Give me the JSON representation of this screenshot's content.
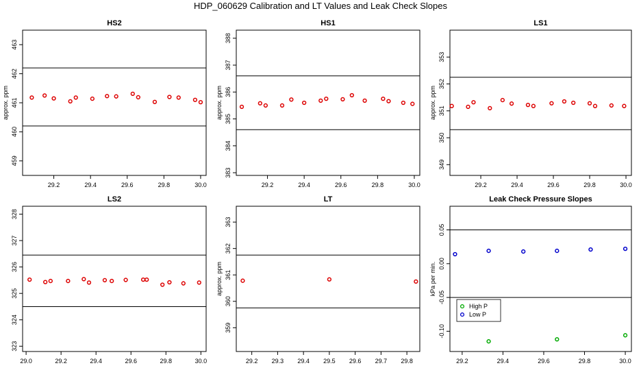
{
  "figure_title": "HDP_060629  Calibration and LT Values and Leak Check Slopes",
  "chart_data": [
    {
      "type": "scatter",
      "title": "HS2",
      "xlabel": "",
      "ylabel": "approx. ppm",
      "xlim": [
        29.03,
        30.03
      ],
      "ylim": [
        458.5,
        463.5
      ],
      "xticks": [
        "29.2",
        "29.4",
        "29.6",
        "29.8",
        "30.0"
      ],
      "xtick_values": [
        29.2,
        29.4,
        29.6,
        29.8,
        30.0
      ],
      "yticks": [
        "459",
        "460",
        "461",
        "462",
        "463"
      ],
      "ytick_values": [
        459,
        460,
        461,
        462,
        463
      ],
      "hlines": [
        462.2,
        460.2
      ],
      "series": [
        {
          "color": "#dd0000",
          "x": [
            29.08,
            29.15,
            29.2,
            29.29,
            29.32,
            29.41,
            29.49,
            29.54,
            29.63,
            29.66,
            29.75,
            29.83,
            29.88,
            29.97,
            30.0
          ],
          "y": [
            461.18,
            461.25,
            461.15,
            461.05,
            461.18,
            461.14,
            461.23,
            461.22,
            461.31,
            461.19,
            461.03,
            461.2,
            461.18,
            461.1,
            461.02
          ]
        }
      ]
    },
    {
      "type": "scatter",
      "title": "HS1",
      "xlabel": "",
      "ylabel": "approx. ppm",
      "xlim": [
        29.03,
        30.03
      ],
      "ylim": [
        382.9,
        388.3
      ],
      "xticks": [
        "29.2",
        "29.4",
        "29.6",
        "29.8",
        "30.0"
      ],
      "xtick_values": [
        29.2,
        29.4,
        29.6,
        29.8,
        30.0
      ],
      "yticks": [
        "383",
        "384",
        "385",
        "386",
        "387",
        "388"
      ],
      "ytick_values": [
        383,
        384,
        385,
        386,
        387,
        388
      ],
      "hlines": [
        386.6,
        384.6
      ],
      "series": [
        {
          "color": "#dd0000",
          "x": [
            29.06,
            29.16,
            29.19,
            29.28,
            29.33,
            29.4,
            29.49,
            29.52,
            29.61,
            29.66,
            29.73,
            29.83,
            29.86,
            29.94,
            29.99
          ],
          "y": [
            385.45,
            385.58,
            385.5,
            385.5,
            385.72,
            385.6,
            385.68,
            385.75,
            385.73,
            385.88,
            385.68,
            385.75,
            385.66,
            385.6,
            385.56
          ]
        }
      ]
    },
    {
      "type": "scatter",
      "title": "LS1",
      "xlabel": "",
      "ylabel": "approx. ppm",
      "xlim": [
        29.03,
        30.03
      ],
      "ylim": [
        348.6,
        354.0
      ],
      "xticks": [
        "29.2",
        "29.4",
        "29.6",
        "29.8",
        "30.0"
      ],
      "xtick_values": [
        29.2,
        29.4,
        29.6,
        29.8,
        30.0
      ],
      "yticks": [
        "349",
        "350",
        "351",
        "352",
        "353"
      ],
      "ytick_values": [
        349,
        350,
        351,
        352,
        353
      ],
      "hlines": [
        352.25,
        350.3
      ],
      "series": [
        {
          "color": "#dd0000",
          "x": [
            29.04,
            29.13,
            29.16,
            29.25,
            29.32,
            29.37,
            29.46,
            29.49,
            29.59,
            29.66,
            29.71,
            29.8,
            29.83,
            29.92,
            29.99
          ],
          "y": [
            351.18,
            351.15,
            351.32,
            351.1,
            351.4,
            351.27,
            351.22,
            351.18,
            351.28,
            351.35,
            351.3,
            351.28,
            351.18,
            351.2,
            351.18
          ]
        }
      ]
    },
    {
      "type": "scatter",
      "title": "LS2",
      "xlabel": "",
      "ylabel": "",
      "xlim": [
        28.98,
        30.03
      ],
      "ylim": [
        322.8,
        328.3
      ],
      "xticks": [
        "29.0",
        "29.2",
        "29.4",
        "29.6",
        "29.8",
        "30.0"
      ],
      "xtick_values": [
        29.0,
        29.2,
        29.4,
        29.6,
        29.8,
        30.0
      ],
      "yticks": [
        "323",
        "324",
        "325",
        "326",
        "327",
        "328"
      ],
      "ytick_values": [
        323,
        324,
        325,
        326,
        327,
        328
      ],
      "hlines": [
        326.45,
        324.5
      ],
      "series": [
        {
          "color": "#dd0000",
          "x": [
            29.02,
            29.11,
            29.14,
            29.24,
            29.33,
            29.36,
            29.45,
            29.49,
            29.57,
            29.67,
            29.69,
            29.78,
            29.82,
            29.9,
            29.99
          ],
          "y": [
            325.52,
            325.43,
            325.47,
            325.47,
            325.54,
            325.41,
            325.5,
            325.47,
            325.51,
            325.52,
            325.52,
            325.33,
            325.42,
            325.38,
            325.41
          ]
        }
      ]
    },
    {
      "type": "scatter",
      "title": "LT",
      "xlabel": "",
      "ylabel": "approx. ppm",
      "xlim": [
        29.14,
        29.85
      ],
      "ylim": [
        358.1,
        363.6
      ],
      "xticks": [
        "29.2",
        "29.3",
        "29.4",
        "29.5",
        "29.6",
        "29.7",
        "29.8"
      ],
      "xtick_values": [
        29.2,
        29.3,
        29.4,
        29.5,
        29.6,
        29.7,
        29.8
      ],
      "yticks": [
        "359",
        "360",
        "361",
        "362",
        "363"
      ],
      "ytick_values": [
        359,
        360,
        361,
        362,
        363
      ],
      "hlines": [
        361.75,
        359.75
      ],
      "series": [
        {
          "color": "#dd0000",
          "x": [
            29.165,
            29.5,
            29.835
          ],
          "y": [
            360.78,
            360.83,
            360.75
          ]
        }
      ]
    },
    {
      "type": "scatter",
      "title": "Leak Check Pressure Slopes",
      "xlabel": "",
      "ylabel": "kPa per min.",
      "xlim": [
        29.14,
        30.03
      ],
      "ylim": [
        -0.13,
        0.085
      ],
      "xticks": [
        "29.2",
        "29.4",
        "29.6",
        "29.8",
        "30.0"
      ],
      "xtick_values": [
        29.2,
        29.4,
        29.6,
        29.8,
        30.0
      ],
      "yticks": [
        "-0.10",
        "-0.05",
        "0.00",
        "0.05"
      ],
      "ytick_values": [
        -0.1,
        -0.05,
        0.0,
        0.05
      ],
      "hlines": [
        0.05,
        -0.05
      ],
      "legend": "inside-left",
      "series": [
        {
          "name": "High P",
          "color": "#00aa00",
          "x": [
            29.33,
            29.665,
            30.0
          ],
          "y": [
            -0.115,
            -0.112,
            -0.106
          ]
        },
        {
          "name": "Low P",
          "color": "#0000cc",
          "x": [
            29.165,
            29.33,
            29.5,
            29.665,
            29.83,
            30.0
          ],
          "y": [
            0.014,
            0.019,
            0.018,
            0.019,
            0.021,
            0.022
          ]
        }
      ]
    }
  ]
}
